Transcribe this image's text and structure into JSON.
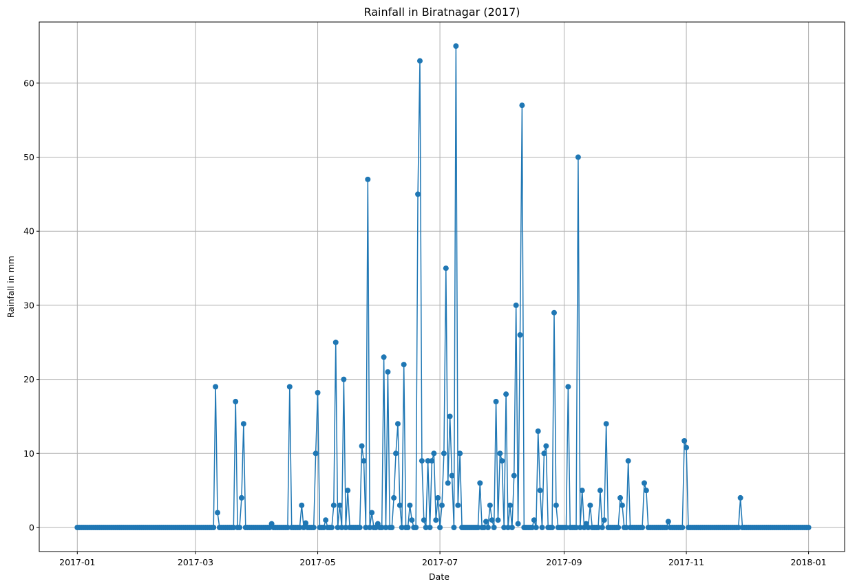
{
  "chart_data": {
    "type": "line",
    "title": "Rainfall in Biratnagar (2017)",
    "xlabel": "Date",
    "ylabel": "Rainfall in mm",
    "x_start": "2017-01-01",
    "x_end": "2018-01-01",
    "ylim": [
      -3.25,
      68.25
    ],
    "xlim": [
      "2016-12-13",
      "2018-01-19"
    ],
    "grid": true,
    "marker": "circle",
    "color": "#1f77b4",
    "x_ticks": [
      "2017-01",
      "2017-03",
      "2017-05",
      "2017-07",
      "2017-09",
      "2017-11",
      "2018-01"
    ],
    "y_ticks": [
      "0",
      "10",
      "20",
      "30",
      "40",
      "50",
      "60"
    ],
    "x_tick_dates": [
      "2017-01-01",
      "2017-03-01",
      "2017-05-01",
      "2017-07-01",
      "2017-09-01",
      "2017-11-01",
      "2018-01-01"
    ],
    "y_tick_values": [
      0,
      10,
      20,
      30,
      40,
      50,
      60
    ],
    "series": [
      {
        "name": "",
        "points": [
          [
            "2017-03-11",
            19
          ],
          [
            "2017-03-12",
            2
          ],
          [
            "2017-03-21",
            17
          ],
          [
            "2017-03-24",
            4
          ],
          [
            "2017-03-25",
            14
          ],
          [
            "2017-04-08",
            0.5
          ],
          [
            "2017-04-17",
            19
          ],
          [
            "2017-04-23",
            3
          ],
          [
            "2017-04-25",
            0.6
          ],
          [
            "2017-04-30",
            10
          ],
          [
            "2017-05-01",
            18.2
          ],
          [
            "2017-05-05",
            1
          ],
          [
            "2017-05-09",
            3
          ],
          [
            "2017-05-10",
            25
          ],
          [
            "2017-05-12",
            3
          ],
          [
            "2017-05-14",
            20
          ],
          [
            "2017-05-16",
            5
          ],
          [
            "2017-05-23",
            11
          ],
          [
            "2017-05-24",
            9
          ],
          [
            "2017-05-26",
            47
          ],
          [
            "2017-05-28",
            2
          ],
          [
            "2017-05-31",
            0.5
          ],
          [
            "2017-06-03",
            23
          ],
          [
            "2017-06-05",
            21
          ],
          [
            "2017-06-08",
            4
          ],
          [
            "2017-06-09",
            10
          ],
          [
            "2017-06-10",
            14
          ],
          [
            "2017-06-11",
            3
          ],
          [
            "2017-06-13",
            22
          ],
          [
            "2017-06-16",
            3
          ],
          [
            "2017-06-17",
            1
          ],
          [
            "2017-06-20",
            45
          ],
          [
            "2017-06-21",
            63
          ],
          [
            "2017-06-22",
            9
          ],
          [
            "2017-06-23",
            1
          ],
          [
            "2017-06-25",
            9
          ],
          [
            "2017-06-27",
            9
          ],
          [
            "2017-06-28",
            10
          ],
          [
            "2017-06-29",
            1
          ],
          [
            "2017-06-30",
            4
          ],
          [
            "2017-07-02",
            3
          ],
          [
            "2017-07-03",
            10
          ],
          [
            "2017-07-04",
            35
          ],
          [
            "2017-07-05",
            6
          ],
          [
            "2017-07-06",
            15
          ],
          [
            "2017-07-07",
            7
          ],
          [
            "2017-07-09",
            65
          ],
          [
            "2017-07-10",
            3
          ],
          [
            "2017-07-11",
            10
          ],
          [
            "2017-07-21",
            6
          ],
          [
            "2017-07-24",
            0.8
          ],
          [
            "2017-07-26",
            3
          ],
          [
            "2017-07-27",
            1
          ],
          [
            "2017-07-29",
            17
          ],
          [
            "2017-07-30",
            1
          ],
          [
            "2017-07-31",
            10
          ],
          [
            "2017-08-01",
            9
          ],
          [
            "2017-08-03",
            18
          ],
          [
            "2017-08-05",
            3
          ],
          [
            "2017-08-07",
            7
          ],
          [
            "2017-08-08",
            30
          ],
          [
            "2017-08-09",
            0.5
          ],
          [
            "2017-08-10",
            26
          ],
          [
            "2017-08-11",
            57
          ],
          [
            "2017-08-17",
            1
          ],
          [
            "2017-08-19",
            13
          ],
          [
            "2017-08-20",
            5
          ],
          [
            "2017-08-22",
            10
          ],
          [
            "2017-08-23",
            11
          ],
          [
            "2017-08-27",
            29
          ],
          [
            "2017-08-28",
            3
          ],
          [
            "2017-09-03",
            19
          ],
          [
            "2017-09-08",
            50
          ],
          [
            "2017-09-10",
            5
          ],
          [
            "2017-09-12",
            0.5
          ],
          [
            "2017-09-14",
            3
          ],
          [
            "2017-09-19",
            5
          ],
          [
            "2017-09-21",
            1
          ],
          [
            "2017-09-22",
            14
          ],
          [
            "2017-09-29",
            4
          ],
          [
            "2017-09-30",
            3
          ],
          [
            "2017-10-03",
            9
          ],
          [
            "2017-10-11",
            6
          ],
          [
            "2017-10-12",
            5
          ],
          [
            "2017-10-23",
            0.8
          ],
          [
            "2017-10-31",
            11.7
          ],
          [
            "2017-11-01",
            10.8
          ],
          [
            "2017-11-28",
            4
          ]
        ]
      }
    ]
  }
}
